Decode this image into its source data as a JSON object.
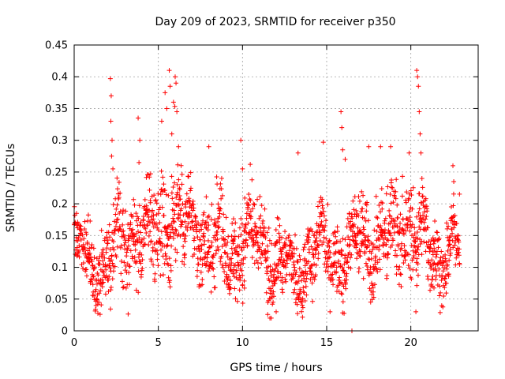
{
  "chart_data": {
    "type": "scatter",
    "title": "Day 209 of 2023, SRMTID for receiver p350",
    "xlabel": "GPS time / hours",
    "ylabel": "SRMTID / TECUs",
    "xlim": [
      0,
      24
    ],
    "ylim": [
      0,
      0.45
    ],
    "x_ticks": [
      0,
      5,
      10,
      15,
      20
    ],
    "x_tick_labels": [
      "0",
      "5",
      "10",
      "15",
      "20"
    ],
    "y_ticks": [
      0,
      0.05,
      0.1,
      0.15,
      0.2,
      0.25,
      0.3,
      0.35,
      0.4,
      0.45
    ],
    "y_tick_labels": [
      "0",
      "0.05",
      "0.1",
      "0.15",
      "0.2",
      "0.25",
      "0.3",
      "0.35",
      "0.4",
      "0.45"
    ],
    "grid": true,
    "marker": "plus",
    "color": "#ff0000",
    "x_data_range": [
      0,
      22.9
    ],
    "baseline_profile": [
      [
        0,
        0.14
      ],
      [
        0.5,
        0.12
      ],
      [
        1,
        0.1
      ],
      [
        1.5,
        0.11
      ],
      [
        2,
        0.11
      ],
      [
        2.5,
        0.13
      ],
      [
        3,
        0.14
      ],
      [
        3.5,
        0.14
      ],
      [
        4,
        0.15
      ],
      [
        4.5,
        0.15
      ],
      [
        5,
        0.16
      ],
      [
        5.5,
        0.18
      ],
      [
        6,
        0.18
      ],
      [
        6.5,
        0.17
      ],
      [
        7,
        0.16
      ],
      [
        7.5,
        0.15
      ],
      [
        8,
        0.14
      ],
      [
        8.5,
        0.13
      ],
      [
        9,
        0.12
      ],
      [
        9.5,
        0.12
      ],
      [
        10,
        0.14
      ],
      [
        10.5,
        0.15
      ],
      [
        11,
        0.13
      ],
      [
        11.5,
        0.12
      ],
      [
        12,
        0.11
      ],
      [
        12.5,
        0.1
      ],
      [
        13,
        0.09
      ],
      [
        13.5,
        0.1
      ],
      [
        14,
        0.13
      ],
      [
        14.5,
        0.13
      ],
      [
        15,
        0.12
      ],
      [
        15.5,
        0.12
      ],
      [
        16,
        0.12
      ],
      [
        16.5,
        0.12
      ],
      [
        17,
        0.14
      ],
      [
        17.5,
        0.15
      ],
      [
        18,
        0.15
      ],
      [
        18.5,
        0.14
      ],
      [
        19,
        0.15
      ],
      [
        19.5,
        0.17
      ],
      [
        20,
        0.17
      ],
      [
        20.5,
        0.14
      ],
      [
        21,
        0.13
      ],
      [
        21.5,
        0.12
      ],
      [
        22,
        0.12
      ],
      [
        22.5,
        0.13
      ],
      [
        22.9,
        0.14
      ]
    ],
    "spread_profile": [
      [
        0,
        0.03
      ],
      [
        2,
        0.045
      ],
      [
        4,
        0.05
      ],
      [
        6,
        0.055
      ],
      [
        8,
        0.045
      ],
      [
        10,
        0.045
      ],
      [
        12,
        0.04
      ],
      [
        13,
        0.035
      ],
      [
        14,
        0.04
      ],
      [
        16,
        0.04
      ],
      [
        18,
        0.045
      ],
      [
        20,
        0.05
      ],
      [
        22,
        0.035
      ],
      [
        22.9,
        0.03
      ]
    ],
    "highlight_points": [
      {
        "x": 2.15,
        "y": 0.397
      },
      {
        "x": 2.2,
        "y": 0.37
      },
      {
        "x": 2.18,
        "y": 0.33
      },
      {
        "x": 2.25,
        "y": 0.3
      },
      {
        "x": 2.22,
        "y": 0.275
      },
      {
        "x": 2.3,
        "y": 0.255
      },
      {
        "x": 3.8,
        "y": 0.335
      },
      {
        "x": 3.9,
        "y": 0.3
      },
      {
        "x": 3.85,
        "y": 0.265
      },
      {
        "x": 5.2,
        "y": 0.33
      },
      {
        "x": 5.4,
        "y": 0.375
      },
      {
        "x": 5.5,
        "y": 0.35
      },
      {
        "x": 5.65,
        "y": 0.41
      },
      {
        "x": 5.7,
        "y": 0.385
      },
      {
        "x": 5.9,
        "y": 0.36
      },
      {
        "x": 6.0,
        "y": 0.4
      },
      {
        "x": 6.05,
        "y": 0.39
      },
      {
        "x": 6.1,
        "y": 0.345
      },
      {
        "x": 5.8,
        "y": 0.31
      },
      {
        "x": 6.2,
        "y": 0.29
      },
      {
        "x": 8.0,
        "y": 0.29
      },
      {
        "x": 9.9,
        "y": 0.3
      },
      {
        "x": 10.0,
        "y": 0.255
      },
      {
        "x": 13.3,
        "y": 0.28
      },
      {
        "x": 14.8,
        "y": 0.297
      },
      {
        "x": 15.85,
        "y": 0.345
      },
      {
        "x": 15.9,
        "y": 0.32
      },
      {
        "x": 15.95,
        "y": 0.285
      },
      {
        "x": 16.1,
        "y": 0.27
      },
      {
        "x": 17.5,
        "y": 0.29
      },
      {
        "x": 18.2,
        "y": 0.29
      },
      {
        "x": 18.8,
        "y": 0.29
      },
      {
        "x": 20.35,
        "y": 0.41
      },
      {
        "x": 20.4,
        "y": 0.4
      },
      {
        "x": 20.45,
        "y": 0.385
      },
      {
        "x": 20.5,
        "y": 0.345
      },
      {
        "x": 20.55,
        "y": 0.31
      },
      {
        "x": 20.6,
        "y": 0.28
      },
      {
        "x": 22.5,
        "y": 0.26
      },
      {
        "x": 22.55,
        "y": 0.235
      },
      {
        "x": 16.5,
        "y": 0.0
      },
      {
        "x": 12.0,
        "y": 0.03
      },
      {
        "x": 1.3,
        "y": 0.04
      },
      {
        "x": 15.2,
        "y": 0.03
      },
      {
        "x": 20.3,
        "y": 0.03
      }
    ]
  }
}
